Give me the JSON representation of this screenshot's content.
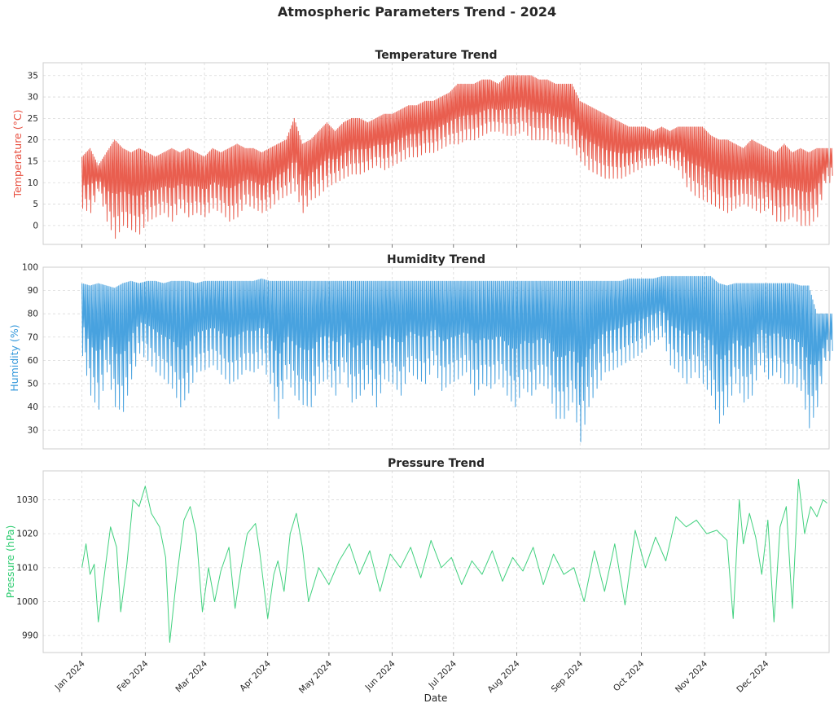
{
  "figure": {
    "title": "Atmospheric Parameters Trend - 2024",
    "xlabel": "Date"
  },
  "chart_data": [
    {
      "type": "line",
      "title": "Temperature Trend",
      "ylabel": "Temperature (°C)",
      "color": "#e74c3c",
      "ylim": [
        -4.4,
        38
      ],
      "yticks": [
        0,
        5,
        10,
        15,
        20,
        25,
        30,
        35
      ],
      "grid": true,
      "xlim": [
        "2023-12-13",
        "2025-01-01"
      ],
      "month_ticks": [
        {
          "date": "2024-01-01",
          "label": "Jan 2024"
        },
        {
          "date": "2024-02-01",
          "label": "Feb 2024"
        },
        {
          "date": "2024-03-01",
          "label": "Mar 2024"
        },
        {
          "date": "2024-04-01",
          "label": "Apr 2024"
        },
        {
          "date": "2024-05-01",
          "label": "May 2024"
        },
        {
          "date": "2024-06-01",
          "label": "Jun 2024"
        },
        {
          "date": "2024-07-01",
          "label": "Jul 2024"
        },
        {
          "date": "2024-08-01",
          "label": "Aug 2024"
        },
        {
          "date": "2024-09-01",
          "label": "Sep 2024"
        },
        {
          "date": "2024-10-01",
          "label": "Oct 2024"
        },
        {
          "date": "2024-11-01",
          "label": "Nov 2024"
        },
        {
          "date": "2024-12-01",
          "label": "Dec 2024"
        }
      ],
      "series": [
        {
          "x": [
            "2024-01-01",
            "2024-01-05",
            "2024-01-09",
            "2024-01-13",
            "2024-01-17",
            "2024-01-21",
            "2024-01-25",
            "2024-01-29",
            "2024-02-02",
            "2024-02-06",
            "2024-02-10",
            "2024-02-14",
            "2024-02-18",
            "2024-02-22",
            "2024-02-26",
            "2024-03-01",
            "2024-03-05",
            "2024-03-09",
            "2024-03-13",
            "2024-03-17",
            "2024-03-21",
            "2024-03-25",
            "2024-03-29",
            "2024-04-02",
            "2024-04-06",
            "2024-04-10",
            "2024-04-14",
            "2024-04-18",
            "2024-04-22",
            "2024-04-26",
            "2024-04-30",
            "2024-05-04",
            "2024-05-08",
            "2024-05-12",
            "2024-05-16",
            "2024-05-20",
            "2024-05-24",
            "2024-05-28",
            "2024-06-01",
            "2024-06-05",
            "2024-06-09",
            "2024-06-13",
            "2024-06-17",
            "2024-06-21",
            "2024-06-25",
            "2024-06-29",
            "2024-07-03",
            "2024-07-07",
            "2024-07-11",
            "2024-07-15",
            "2024-07-19",
            "2024-07-23",
            "2024-07-27",
            "2024-07-31",
            "2024-08-04",
            "2024-08-08",
            "2024-08-12",
            "2024-08-16",
            "2024-08-20",
            "2024-08-24",
            "2024-08-28",
            "2024-09-01",
            "2024-09-05",
            "2024-09-09",
            "2024-09-13",
            "2024-09-17",
            "2024-09-21",
            "2024-09-25",
            "2024-09-29",
            "2024-10-03",
            "2024-10-07",
            "2024-10-11",
            "2024-10-15",
            "2024-10-19",
            "2024-10-23",
            "2024-10-27",
            "2024-10-31",
            "2024-11-04",
            "2024-11-08",
            "2024-11-12",
            "2024-11-16",
            "2024-11-20",
            "2024-11-24",
            "2024-11-28",
            "2024-12-02",
            "2024-12-06",
            "2024-12-10",
            "2024-12-14",
            "2024-12-18",
            "2024-12-22",
            "2024-12-26",
            "2024-12-30"
          ],
          "high": [
            16,
            18,
            14,
            17,
            20,
            18,
            17,
            18,
            17,
            16,
            17,
            18,
            17,
            18,
            17,
            16,
            18,
            17,
            18,
            19,
            18,
            18,
            17,
            18,
            19,
            20,
            25,
            19,
            20,
            22,
            24,
            22,
            24,
            25,
            25,
            24,
            25,
            26,
            26,
            27,
            28,
            28,
            29,
            29,
            30,
            31,
            33,
            33,
            33,
            34,
            34,
            33,
            35,
            35,
            35,
            35,
            34,
            34,
            33,
            33,
            33,
            29,
            28,
            27,
            26,
            25,
            24,
            23,
            23,
            23,
            22,
            23,
            22,
            23,
            23,
            23,
            23,
            21,
            20,
            20,
            19,
            18,
            20,
            19,
            18,
            17,
            19,
            17,
            18,
            17,
            18,
            18
          ],
          "low": [
            4,
            3,
            8,
            1,
            -3,
            0,
            -1,
            -2,
            1,
            2,
            3,
            1,
            4,
            2,
            3,
            2,
            4,
            3,
            1,
            2,
            5,
            4,
            3,
            4,
            6,
            7,
            8,
            3,
            6,
            7,
            9,
            10,
            11,
            12,
            12,
            13,
            14,
            13,
            14,
            15,
            16,
            16,
            17,
            17,
            18,
            19,
            19,
            20,
            20,
            21,
            22,
            22,
            21,
            21,
            22,
            20,
            20,
            20,
            19,
            19,
            18,
            15,
            13,
            12,
            11,
            11,
            11,
            12,
            13,
            14,
            14,
            15,
            14,
            13,
            9,
            7,
            6,
            5,
            4,
            3,
            4,
            5,
            4,
            3,
            4,
            1,
            1,
            2,
            0,
            0,
            2,
            10
          ]
        }
      ]
    },
    {
      "type": "line",
      "title": "Humidity Trend",
      "ylabel": "Humidity (%)",
      "color": "#3498db",
      "ylim": [
        22,
        100
      ],
      "yticks": [
        30,
        40,
        50,
        60,
        70,
        80,
        90,
        100
      ],
      "grid": true,
      "series": [
        {
          "x": [
            "2024-01-01",
            "2024-01-05",
            "2024-01-09",
            "2024-01-13",
            "2024-01-17",
            "2024-01-21",
            "2024-01-25",
            "2024-01-29",
            "2024-02-02",
            "2024-02-06",
            "2024-02-10",
            "2024-02-14",
            "2024-02-18",
            "2024-02-22",
            "2024-02-26",
            "2024-03-01",
            "2024-03-05",
            "2024-03-09",
            "2024-03-13",
            "2024-03-17",
            "2024-03-21",
            "2024-03-25",
            "2024-03-29",
            "2024-04-02",
            "2024-04-06",
            "2024-04-10",
            "2024-04-14",
            "2024-04-18",
            "2024-04-22",
            "2024-04-26",
            "2024-04-30",
            "2024-05-04",
            "2024-05-08",
            "2024-05-12",
            "2024-05-16",
            "2024-05-20",
            "2024-05-24",
            "2024-05-28",
            "2024-06-01",
            "2024-06-05",
            "2024-06-09",
            "2024-06-13",
            "2024-06-17",
            "2024-06-21",
            "2024-06-25",
            "2024-06-29",
            "2024-07-03",
            "2024-07-07",
            "2024-07-11",
            "2024-07-15",
            "2024-07-19",
            "2024-07-23",
            "2024-07-27",
            "2024-07-31",
            "2024-08-04",
            "2024-08-08",
            "2024-08-12",
            "2024-08-16",
            "2024-08-20",
            "2024-08-24",
            "2024-08-28",
            "2024-09-01",
            "2024-09-05",
            "2024-09-09",
            "2024-09-13",
            "2024-09-17",
            "2024-09-21",
            "2024-09-25",
            "2024-09-29",
            "2024-10-03",
            "2024-10-07",
            "2024-10-11",
            "2024-10-15",
            "2024-10-19",
            "2024-10-23",
            "2024-10-27",
            "2024-10-31",
            "2024-11-04",
            "2024-11-08",
            "2024-11-12",
            "2024-11-16",
            "2024-11-20",
            "2024-11-24",
            "2024-11-28",
            "2024-12-02",
            "2024-12-06",
            "2024-12-10",
            "2024-12-14",
            "2024-12-18",
            "2024-12-22",
            "2024-12-26",
            "2024-12-30"
          ],
          "high": [
            93,
            92,
            93,
            92,
            91,
            93,
            94,
            93,
            94,
            94,
            93,
            94,
            94,
            94,
            93,
            94,
            94,
            94,
            94,
            94,
            94,
            94,
            95,
            94,
            94,
            94,
            94,
            94,
            94,
            94,
            94,
            94,
            94,
            94,
            94,
            94,
            94,
            94,
            94,
            94,
            94,
            94,
            94,
            94,
            94,
            94,
            94,
            94,
            94,
            94,
            94,
            94,
            94,
            94,
            94,
            94,
            94,
            94,
            94,
            94,
            94,
            94,
            94,
            94,
            94,
            94,
            94,
            95,
            95,
            95,
            95,
            96,
            96,
            96,
            96,
            96,
            96,
            96,
            93,
            92,
            93,
            93,
            93,
            93,
            93,
            93,
            93,
            93,
            92,
            92,
            80,
            80
          ],
          "low": [
            62,
            45,
            39,
            55,
            40,
            38,
            52,
            63,
            60,
            55,
            52,
            48,
            40,
            46,
            55,
            56,
            58,
            54,
            50,
            52,
            56,
            55,
            58,
            50,
            35,
            52,
            45,
            41,
            40,
            50,
            52,
            45,
            55,
            42,
            45,
            50,
            40,
            52,
            50,
            45,
            55,
            52,
            50,
            58,
            47,
            50,
            52,
            55,
            45,
            50,
            48,
            52,
            45,
            40,
            48,
            45,
            50,
            48,
            35,
            35,
            42,
            25,
            40,
            48,
            55,
            56,
            58,
            60,
            62,
            65,
            68,
            70,
            58,
            55,
            50,
            55,
            50,
            45,
            33,
            40,
            50,
            42,
            45,
            58,
            52,
            55,
            50,
            50,
            47,
            31,
            40,
            60
          ]
        }
      ]
    },
    {
      "type": "line",
      "title": "Pressure Trend",
      "ylabel": "Pressure (hPa)",
      "color": "#2ecc71",
      "ylim": [
        985,
        1038.5
      ],
      "yticks": [
        990,
        1000,
        1010,
        1020,
        1030
      ],
      "grid": true,
      "series": [
        {
          "x": [
            "2024-01-01",
            "2024-01-03",
            "2024-01-05",
            "2024-01-07",
            "2024-01-09",
            "2024-01-12",
            "2024-01-15",
            "2024-01-18",
            "2024-01-20",
            "2024-01-23",
            "2024-01-26",
            "2024-01-29",
            "2024-02-01",
            "2024-02-04",
            "2024-02-08",
            "2024-02-11",
            "2024-02-13",
            "2024-02-16",
            "2024-02-20",
            "2024-02-23",
            "2024-02-26",
            "2024-02-29",
            "2024-03-03",
            "2024-03-06",
            "2024-03-09",
            "2024-03-13",
            "2024-03-16",
            "2024-03-19",
            "2024-03-22",
            "2024-03-26",
            "2024-03-28",
            "2024-04-01",
            "2024-04-04",
            "2024-04-06",
            "2024-04-09",
            "2024-04-12",
            "2024-04-15",
            "2024-04-18",
            "2024-04-21",
            "2024-04-26",
            "2024-05-01",
            "2024-05-06",
            "2024-05-11",
            "2024-05-16",
            "2024-05-21",
            "2024-05-26",
            "2024-05-31",
            "2024-06-05",
            "2024-06-10",
            "2024-06-15",
            "2024-06-20",
            "2024-06-25",
            "2024-06-30",
            "2024-07-05",
            "2024-07-10",
            "2024-07-15",
            "2024-07-20",
            "2024-07-25",
            "2024-07-30",
            "2024-08-04",
            "2024-08-09",
            "2024-08-14",
            "2024-08-19",
            "2024-08-24",
            "2024-08-29",
            "2024-09-03",
            "2024-09-08",
            "2024-09-13",
            "2024-09-18",
            "2024-09-23",
            "2024-09-28",
            "2024-10-03",
            "2024-10-08",
            "2024-10-13",
            "2024-10-18",
            "2024-10-23",
            "2024-10-28",
            "2024-11-02",
            "2024-11-07",
            "2024-11-12",
            "2024-11-15",
            "2024-11-18",
            "2024-11-20",
            "2024-11-23",
            "2024-11-26",
            "2024-11-29",
            "2024-12-02",
            "2024-12-05",
            "2024-12-08",
            "2024-12-11",
            "2024-12-14",
            "2024-12-17",
            "2024-12-20",
            "2024-12-23",
            "2024-12-26",
            "2024-12-29",
            "2024-12-31"
          ],
          "values": [
            1010,
            1017,
            1008,
            1011,
            994,
            1008,
            1022,
            1016,
            997,
            1011,
            1030,
            1028,
            1034,
            1026,
            1022,
            1013,
            988,
            1005,
            1024,
            1028,
            1020,
            997,
            1010,
            1000,
            1009,
            1016,
            998,
            1010,
            1020,
            1023,
            1015,
            995,
            1008,
            1012,
            1003,
            1020,
            1026,
            1016,
            1000,
            1010,
            1005,
            1012,
            1017,
            1008,
            1015,
            1003,
            1014,
            1010,
            1016,
            1007,
            1018,
            1010,
            1013,
            1005,
            1012,
            1008,
            1015,
            1006,
            1013,
            1009,
            1016,
            1005,
            1014,
            1008,
            1010,
            1000,
            1015,
            1003,
            1017,
            999,
            1021,
            1010,
            1019,
            1012,
            1025,
            1022,
            1024,
            1020,
            1021,
            1018,
            995,
            1030,
            1017,
            1026,
            1019,
            1008,
            1024,
            994,
            1022,
            1028,
            998,
            1036,
            1020,
            1028,
            1025,
            1030,
            1029
          ]
        }
      ]
    }
  ]
}
